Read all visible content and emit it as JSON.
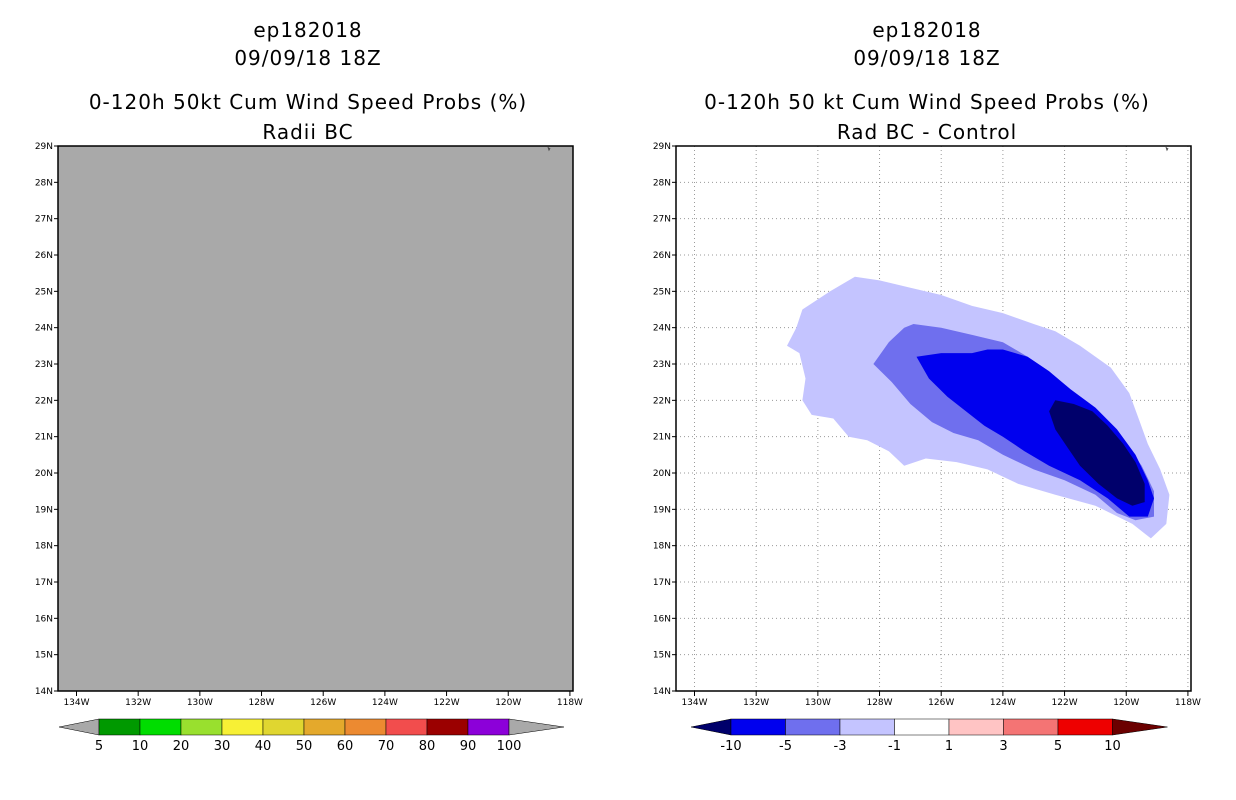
{
  "chart_data": [
    {
      "type": "heatmap",
      "storm_id": "ep182018",
      "datetime": "09/09/18 18Z",
      "title": "0-120h 50kt Cum Wind Speed Probs (%)",
      "subtitle": "Radii BC",
      "field_fill_color": "#a9a9a9",
      "grid": false,
      "xlim": [
        -134.6,
        -117.9
      ],
      "ylim": [
        14,
        29
      ],
      "x_ticks": [
        -134,
        -132,
        -130,
        -128,
        -126,
        -124,
        -122,
        -120,
        -118
      ],
      "x_tick_labels": [
        "134W",
        "132W",
        "130W",
        "128W",
        "126W",
        "124W",
        "122W",
        "120W",
        "118W"
      ],
      "y_ticks": [
        14,
        15,
        16,
        17,
        18,
        19,
        20,
        21,
        22,
        23,
        24,
        25,
        26,
        27,
        28,
        29
      ],
      "y_tick_labels": [
        "14N",
        "15N",
        "16N",
        "17N",
        "18N",
        "19N",
        "20N",
        "21N",
        "22N",
        "23N",
        "24N",
        "25N",
        "26N",
        "27N",
        "28N",
        "29N"
      ],
      "colorbar": {
        "labels": [
          "5",
          "10",
          "20",
          "30",
          "40",
          "50",
          "60",
          "70",
          "80",
          "90",
          "100"
        ],
        "colors": [
          "#009900",
          "#00dd00",
          "#99e02e",
          "#f7f035",
          "#e0d630",
          "#e4a92c",
          "#ec8a31",
          "#f24d4d",
          "#9b0000",
          "#8c00d9"
        ],
        "under_color": "#a9a9a9",
        "over_color": "#a9a9a9"
      }
    },
    {
      "type": "heatmap",
      "storm_id": "ep182018",
      "datetime": "09/09/18 18Z",
      "title": "0-120h 50 kt Cum Wind Speed Probs (%)",
      "subtitle": "Rad BC - Control",
      "grid": true,
      "xlim": [
        -134.6,
        -117.9
      ],
      "ylim": [
        14,
        29
      ],
      "x_ticks": [
        -134,
        -132,
        -130,
        -128,
        -126,
        -124,
        -122,
        -120,
        -118
      ],
      "x_tick_labels": [
        "134W",
        "132W",
        "130W",
        "128W",
        "126W",
        "124W",
        "122W",
        "120W",
        "118W"
      ],
      "y_ticks": [
        14,
        15,
        16,
        17,
        18,
        19,
        20,
        21,
        22,
        23,
        24,
        25,
        26,
        27,
        28,
        29
      ],
      "y_tick_labels": [
        "14N",
        "15N",
        "16N",
        "17N",
        "18N",
        "19N",
        "20N",
        "21N",
        "22N",
        "23N",
        "24N",
        "25N",
        "26N",
        "27N",
        "28N",
        "29N"
      ],
      "contours": [
        {
          "level": "-3 to -1",
          "color": "#c4c4ff",
          "points": [
            [
              -128.8,
              25.4
            ],
            [
              -128,
              25.3
            ],
            [
              -127,
              25.1
            ],
            [
              -126,
              24.9
            ],
            [
              -125,
              24.6
            ],
            [
              -124,
              24.4
            ],
            [
              -123,
              24.1
            ],
            [
              -122.3,
              23.9
            ],
            [
              -121.5,
              23.5
            ],
            [
              -120.5,
              22.9
            ],
            [
              -119.9,
              22.2
            ],
            [
              -119.6,
              21.5
            ],
            [
              -119.3,
              20.8
            ],
            [
              -118.9,
              20.1
            ],
            [
              -118.6,
              19.4
            ],
            [
              -118.7,
              18.6
            ],
            [
              -119.2,
              18.2
            ],
            [
              -119.8,
              18.6
            ],
            [
              -121,
              19.1
            ],
            [
              -122.3,
              19.4
            ],
            [
              -123.5,
              19.7
            ],
            [
              -124.5,
              20.1
            ],
            [
              -125.5,
              20.3
            ],
            [
              -126.5,
              20.4
            ],
            [
              -127.2,
              20.2
            ],
            [
              -127.7,
              20.6
            ],
            [
              -128.4,
              20.9
            ],
            [
              -129,
              21
            ],
            [
              -129.5,
              21.5
            ],
            [
              -130.2,
              21.6
            ],
            [
              -130.5,
              22
            ],
            [
              -130.4,
              22.6
            ],
            [
              -130.6,
              23.3
            ],
            [
              -131,
              23.5
            ],
            [
              -130.7,
              24
            ],
            [
              -130.5,
              24.5
            ],
            [
              -129.6,
              25
            ]
          ]
        },
        {
          "level": "-5 to -3",
          "color": "#6f6fee",
          "points": [
            [
              -126.9,
              24.1
            ],
            [
              -126,
              24
            ],
            [
              -125,
              23.8
            ],
            [
              -124,
              23.6
            ],
            [
              -123.2,
              23.2
            ],
            [
              -122.5,
              22.8
            ],
            [
              -121.6,
              22.1
            ],
            [
              -120.8,
              21.5
            ],
            [
              -120.1,
              20.9
            ],
            [
              -119.5,
              20.2
            ],
            [
              -119.1,
              19.5
            ],
            [
              -119.1,
              18.8
            ],
            [
              -119.7,
              18.7
            ],
            [
              -120.3,
              18.9
            ],
            [
              -121,
              19.4
            ],
            [
              -122,
              19.8
            ],
            [
              -123,
              20.1
            ],
            [
              -124,
              20.5
            ],
            [
              -124.8,
              20.9
            ],
            [
              -125.6,
              21.1
            ],
            [
              -126.3,
              21.4
            ],
            [
              -127,
              21.9
            ],
            [
              -127.6,
              22.5
            ],
            [
              -128.2,
              23
            ],
            [
              -127.7,
              23.6
            ],
            [
              -127.2,
              24
            ]
          ]
        },
        {
          "level": "-10 to -5",
          "color": "#0000ee",
          "points": [
            [
              -126.8,
              23.2
            ],
            [
              -126,
              23.3
            ],
            [
              -125,
              23.3
            ],
            [
              -124.5,
              23.4
            ],
            [
              -124,
              23.4
            ],
            [
              -123.2,
              23.2
            ],
            [
              -122.5,
              22.8
            ],
            [
              -121.8,
              22.3
            ],
            [
              -121,
              21.8
            ],
            [
              -120.3,
              21.2
            ],
            [
              -119.7,
              20.5
            ],
            [
              -119.3,
              19.8
            ],
            [
              -119.1,
              19.3
            ],
            [
              -119.3,
              18.8
            ],
            [
              -119.9,
              18.8
            ],
            [
              -120.6,
              19.3
            ],
            [
              -121.5,
              19.8
            ],
            [
              -122.5,
              20.2
            ],
            [
              -123.3,
              20.6
            ],
            [
              -124,
              21
            ],
            [
              -124.6,
              21.3
            ],
            [
              -125.2,
              21.7
            ],
            [
              -125.8,
              22.1
            ],
            [
              -126.4,
              22.6
            ]
          ]
        },
        {
          "level": "< -10",
          "color": "#00006b",
          "points": [
            [
              -122.3,
              22
            ],
            [
              -121.7,
              21.9
            ],
            [
              -121.1,
              21.7
            ],
            [
              -120.6,
              21.3
            ],
            [
              -120.1,
              20.8
            ],
            [
              -119.7,
              20.3
            ],
            [
              -119.4,
              19.7
            ],
            [
              -119.4,
              19.2
            ],
            [
              -119.8,
              19.1
            ],
            [
              -120.3,
              19.3
            ],
            [
              -120.9,
              19.7
            ],
            [
              -121.5,
              20.2
            ],
            [
              -121.9,
              20.7
            ],
            [
              -122.3,
              21.2
            ],
            [
              -122.5,
              21.7
            ]
          ]
        }
      ],
      "colorbar": {
        "labels": [
          "-10",
          "-5",
          "-3",
          "-1",
          "1",
          "3",
          "5",
          "10"
        ],
        "colors": [
          "#0000ee",
          "#6f6fee",
          "#c4c4ff",
          "#ffffff",
          "#ffc4c4",
          "#f47474",
          "#ee0000"
        ],
        "under_color": "#00006b",
        "over_color": "#6b0000"
      }
    }
  ]
}
